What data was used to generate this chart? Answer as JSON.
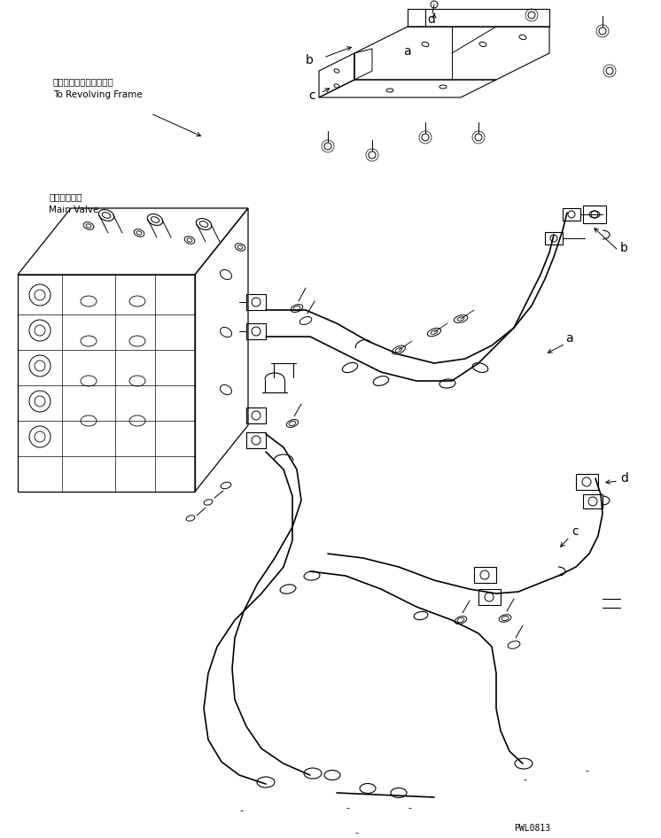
{
  "bg_color": "#ffffff",
  "line_color": "#000000",
  "title_text": "PWL0813",
  "jp_text": "レボルビングフレームへ",
  "en_text": "To Revolving Frame",
  "jp_text2": "メインバルブ",
  "en_text2": "Main Valve",
  "font_size_label": 10,
  "font_size_small": 7.5,
  "font_size_code": 7
}
